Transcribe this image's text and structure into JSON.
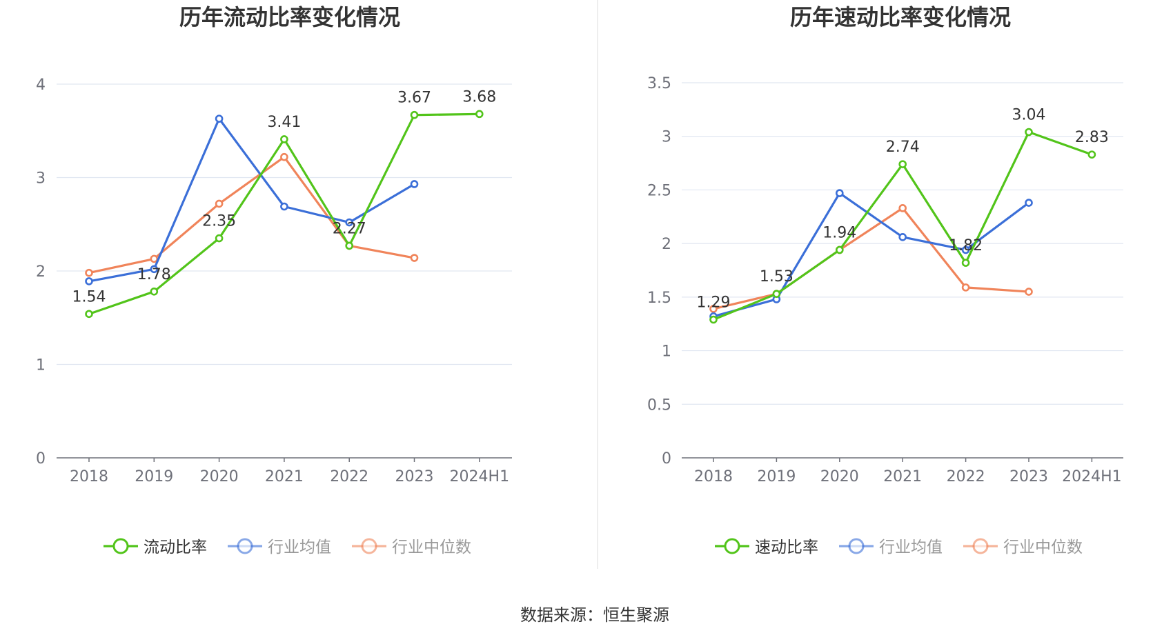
{
  "source_text": "数据来源：恒生聚源",
  "chart_data": [
    {
      "type": "line",
      "title": "历年流动比率变化情况",
      "categories": [
        "2018",
        "2019",
        "2020",
        "2021",
        "2022",
        "2023",
        "2024H1"
      ],
      "ylim": [
        0,
        4
      ],
      "yticks": [
        0,
        1,
        2,
        3,
        4
      ],
      "grid": true,
      "legend_position": "bottom-center",
      "series": [
        {
          "name": "流动比率",
          "color": "#52c41a",
          "values": [
            1.54,
            1.78,
            2.35,
            3.41,
            2.27,
            3.67,
            3.68
          ],
          "labels": [
            "1.54",
            "1.78",
            "2.35",
            "3.41",
            "2.27",
            "3.67",
            "3.68"
          ]
        },
        {
          "name": "行业均值",
          "color": "#3b6fd8",
          "values": [
            1.89,
            2.02,
            3.63,
            2.69,
            2.52,
            2.93,
            null
          ]
        },
        {
          "name": "行业中位数",
          "color": "#f0845a",
          "values": [
            1.98,
            2.13,
            2.72,
            3.22,
            2.27,
            2.14,
            null
          ]
        }
      ]
    },
    {
      "type": "line",
      "title": "历年速动比率变化情况",
      "categories": [
        "2018",
        "2019",
        "2020",
        "2021",
        "2022",
        "2023",
        "2024H1"
      ],
      "ylim": [
        0,
        3.5
      ],
      "yticks": [
        0,
        0.5,
        1,
        1.5,
        2,
        2.5,
        3,
        3.5
      ],
      "grid": true,
      "legend_position": "bottom-center",
      "series": [
        {
          "name": "速动比率",
          "color": "#52c41a",
          "values": [
            1.29,
            1.53,
            1.94,
            2.74,
            1.82,
            3.04,
            2.83
          ],
          "labels": [
            "1.29",
            "1.53",
            "1.94",
            "2.74",
            "1.82",
            "3.04",
            "2.83"
          ]
        },
        {
          "name": "行业均值",
          "color": "#3b6fd8",
          "values": [
            1.32,
            1.48,
            2.47,
            2.06,
            1.94,
            2.38,
            null
          ]
        },
        {
          "name": "行业中位数",
          "color": "#f0845a",
          "values": [
            1.39,
            1.53,
            1.94,
            2.33,
            1.59,
            1.55,
            null
          ]
        }
      ]
    }
  ]
}
